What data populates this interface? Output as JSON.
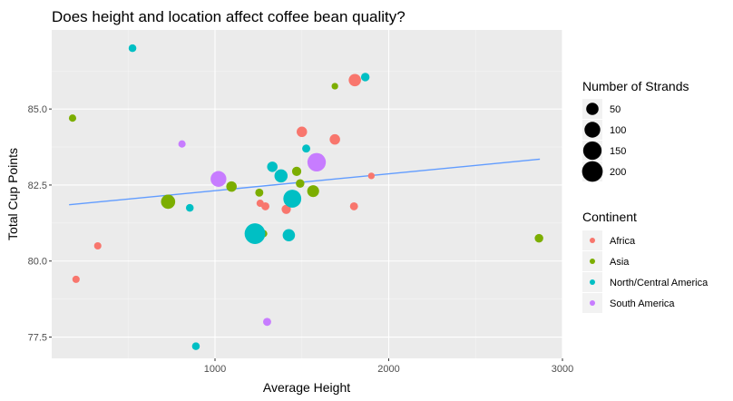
{
  "chart_data": {
    "type": "scatter",
    "title": "Does height and location affect coffee bean quality?",
    "xlabel": "Average Height",
    "ylabel": "Total Cup Points",
    "xlim": [
      60,
      3000
    ],
    "ylim": [
      76.8,
      87.6
    ],
    "x_ticks": [
      1000,
      2000,
      3000
    ],
    "x_tick_labels": [
      "1000",
      "2000",
      "3000"
    ],
    "y_ticks": [
      77.5,
      80.0,
      82.5,
      85.0
    ],
    "y_tick_labels": [
      "77.5",
      "80.0",
      "82.5",
      "85.0"
    ],
    "grid": true,
    "legend_placement": "right",
    "size_legend": {
      "title": "Number of Strands",
      "values": [
        50,
        100,
        150,
        200
      ],
      "labels": [
        "50",
        "100",
        "150",
        "200"
      ]
    },
    "color_legend": {
      "title": "Continent",
      "entries": [
        {
          "label": "Africa",
          "color": "#F8766D"
        },
        {
          "label": "Asia",
          "color": "#7CAE00"
        },
        {
          "label": "North/Central America",
          "color": "#00BFC4"
        },
        {
          "label": "South America",
          "color": "#C77CFF"
        }
      ]
    },
    "series": [
      {
        "name": "Africa",
        "color": "#F8766D",
        "points": [
          {
            "x": 200,
            "y": 79.4,
            "strands": 8
          },
          {
            "x": 325,
            "y": 80.5,
            "strands": 8
          },
          {
            "x": 1260,
            "y": 81.9,
            "strands": 8
          },
          {
            "x": 1290,
            "y": 81.8,
            "strands": 12
          },
          {
            "x": 1410,
            "y": 81.7,
            "strands": 20
          },
          {
            "x": 1500,
            "y": 84.25,
            "strands": 30
          },
          {
            "x": 1690,
            "y": 84.0,
            "strands": 30
          },
          {
            "x": 1800,
            "y": 81.8,
            "strands": 12
          },
          {
            "x": 1805,
            "y": 85.95,
            "strands": 50
          },
          {
            "x": 1900,
            "y": 82.8,
            "strands": 5
          }
        ]
      },
      {
        "name": "Asia",
        "color": "#7CAE00",
        "points": [
          {
            "x": 180,
            "y": 84.7,
            "strands": 8
          },
          {
            "x": 730,
            "y": 81.95,
            "strands": 75
          },
          {
            "x": 1095,
            "y": 82.45,
            "strands": 30
          },
          {
            "x": 1255,
            "y": 82.25,
            "strands": 12
          },
          {
            "x": 1280,
            "y": 80.9,
            "strands": 8
          },
          {
            "x": 1470,
            "y": 82.95,
            "strands": 20
          },
          {
            "x": 1490,
            "y": 82.55,
            "strands": 15
          },
          {
            "x": 1565,
            "y": 82.3,
            "strands": 45
          },
          {
            "x": 1690,
            "y": 85.75,
            "strands": 5
          },
          {
            "x": 2865,
            "y": 80.75,
            "strands": 15
          }
        ]
      },
      {
        "name": "North/Central America",
        "color": "#00BFC4",
        "points": [
          {
            "x": 525,
            "y": 87.0,
            "strands": 10
          },
          {
            "x": 855,
            "y": 81.75,
            "strands": 10
          },
          {
            "x": 890,
            "y": 77.2,
            "strands": 10
          },
          {
            "x": 1230,
            "y": 80.9,
            "strands": 200
          },
          {
            "x": 1330,
            "y": 83.1,
            "strands": 30
          },
          {
            "x": 1380,
            "y": 82.8,
            "strands": 60
          },
          {
            "x": 1425,
            "y": 80.85,
            "strands": 50
          },
          {
            "x": 1445,
            "y": 82.05,
            "strands": 140
          },
          {
            "x": 1525,
            "y": 83.7,
            "strands": 12
          },
          {
            "x": 1865,
            "y": 86.05,
            "strands": 15
          }
        ]
      },
      {
        "name": "South America",
        "color": "#C77CFF",
        "points": [
          {
            "x": 810,
            "y": 83.85,
            "strands": 8
          },
          {
            "x": 1020,
            "y": 82.7,
            "strands": 100
          },
          {
            "x": 1300,
            "y": 78.0,
            "strands": 12
          },
          {
            "x": 1585,
            "y": 83.25,
            "strands": 150
          }
        ]
      }
    ],
    "trend_line": {
      "color": "#619CFF",
      "x": [
        160,
        2870
      ],
      "y": [
        81.85,
        83.35
      ]
    }
  }
}
